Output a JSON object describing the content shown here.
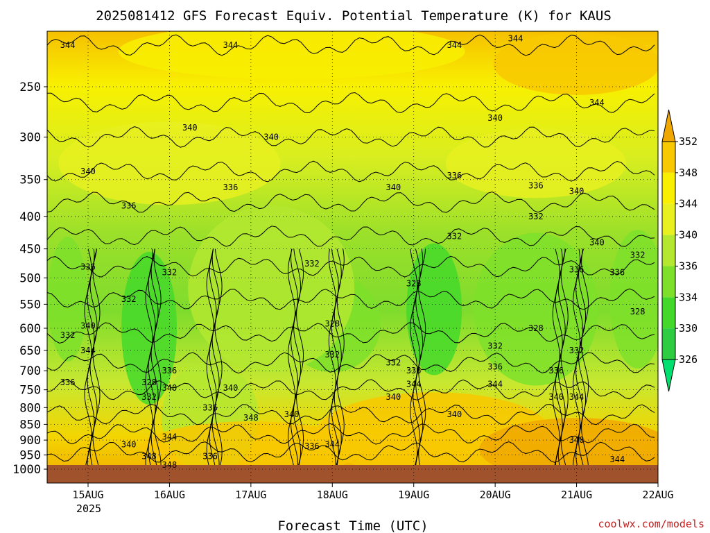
{
  "chart_data": {
    "type": "heatmap",
    "title": "2025081412 GFS Forecast Equiv. Potential Temperature (K) for KAUS",
    "xlabel": "Forecast Time (UTC)",
    "ylabel": "",
    "credit": "coolwx.com/models",
    "x_ticks": [
      "15AUG",
      "16AUG",
      "17AUG",
      "18AUG",
      "19AUG",
      "20AUG",
      "21AUG",
      "22AUG"
    ],
    "x_year_label": "2025",
    "y_axis": {
      "scale": "log-pressure",
      "range_hPa": [
        1000,
        200
      ],
      "inverted": true
    },
    "y_ticks": [
      "250",
      "300",
      "350",
      "400",
      "450",
      "500",
      "550",
      "600",
      "650",
      "700",
      "750",
      "800",
      "850",
      "900",
      "950",
      "1000"
    ],
    "y_tick_values": [
      250,
      300,
      350,
      400,
      450,
      500,
      550,
      600,
      650,
      700,
      750,
      800,
      850,
      900,
      950,
      1000
    ],
    "grid": true,
    "colorbar": {
      "levels": [
        326,
        330,
        334,
        336,
        340,
        344,
        348,
        352
      ],
      "labels": [
        "326",
        "330",
        "334",
        "336",
        "340",
        "344",
        "348",
        "352"
      ],
      "colors": [
        "#2ecc40",
        "#44d92a",
        "#7ee02a",
        "#b4e830",
        "#e8f020",
        "#f8f000",
        "#f8c800",
        "#f0a800"
      ],
      "placement": "right"
    },
    "contour_interval_K": 4,
    "contour_labels": [
      {
        "text": "344",
        "time": "14AUG 18Z",
        "p": 215
      },
      {
        "text": "344",
        "time": "16AUG 18Z",
        "p": 215
      },
      {
        "text": "344",
        "time": "19AUG 12Z",
        "p": 215
      },
      {
        "text": "344",
        "time": "20AUG 06Z",
        "p": 210
      },
      {
        "text": "344",
        "time": "21AUG 06Z",
        "p": 265
      },
      {
        "text": "340",
        "time": "20AUG 00Z",
        "p": 280
      },
      {
        "text": "340",
        "time": "16AUG 06Z",
        "p": 290
      },
      {
        "text": "340",
        "time": "17AUG 06Z",
        "p": 300
      },
      {
        "text": "340",
        "time": "15AUG 00Z",
        "p": 340
      },
      {
        "text": "340",
        "time": "18AUG 18Z",
        "p": 360
      },
      {
        "text": "336",
        "time": "16AUG 18Z",
        "p": 360
      },
      {
        "text": "336",
        "time": "15AUG 12Z",
        "p": 385
      },
      {
        "text": "336",
        "time": "19AUG 12Z",
        "p": 345
      },
      {
        "text": "336",
        "time": "20AUG 12Z",
        "p": 358
      },
      {
        "text": "340",
        "time": "21AUG 00Z",
        "p": 365
      },
      {
        "text": "332",
        "time": "20AUG 12Z",
        "p": 400
      },
      {
        "text": "332",
        "time": "19AUG 12Z",
        "p": 430
      },
      {
        "text": "340",
        "time": "21AUG 06Z",
        "p": 440
      },
      {
        "text": "332",
        "time": "21AUG 18Z",
        "p": 460
      },
      {
        "text": "336",
        "time": "15AUG 00Z",
        "p": 480
      },
      {
        "text": "332",
        "time": "16AUG 00Z",
        "p": 490
      },
      {
        "text": "332",
        "time": "17AUG 18Z",
        "p": 475
      },
      {
        "text": "336",
        "time": "21AUG 00Z",
        "p": 485
      },
      {
        "text": "336",
        "time": "21AUG 12Z",
        "p": 490
      },
      {
        "text": "328",
        "time": "19AUG 00Z",
        "p": 510
      },
      {
        "text": "332",
        "time": "15AUG 12Z",
        "p": 540
      },
      {
        "text": "328",
        "time": "21AUG 18Z",
        "p": 565
      },
      {
        "text": "340",
        "time": "15AUG 00Z",
        "p": 595
      },
      {
        "text": "328",
        "time": "18AUG 00Z",
        "p": 590
      },
      {
        "text": "328",
        "time": "20AUG 12Z",
        "p": 600
      },
      {
        "text": "332",
        "time": "14AUG 18Z",
        "p": 615
      },
      {
        "text": "344",
        "time": "15AUG 00Z",
        "p": 650
      },
      {
        "text": "332",
        "time": "20AUG 00Z",
        "p": 640
      },
      {
        "text": "332",
        "time": "21AUG 00Z",
        "p": 650
      },
      {
        "text": "332",
        "time": "18AUG 00Z",
        "p": 660
      },
      {
        "text": "332",
        "time": "18AUG 18Z",
        "p": 680
      },
      {
        "text": "336",
        "time": "16AUG 00Z",
        "p": 700
      },
      {
        "text": "336",
        "time": "19AUG 00Z",
        "p": 700
      },
      {
        "text": "336",
        "time": "20AUG 00Z",
        "p": 690
      },
      {
        "text": "336",
        "time": "20AUG 18Z",
        "p": 700
      },
      {
        "text": "336",
        "time": "14AUG 18Z",
        "p": 730
      },
      {
        "text": "328",
        "time": "15AUG 18Z",
        "p": 730
      },
      {
        "text": "340",
        "time": "16AUG 00Z",
        "p": 745
      },
      {
        "text": "340",
        "time": "16AUG 18Z",
        "p": 745
      },
      {
        "text": "344",
        "time": "19AUG 00Z",
        "p": 735
      },
      {
        "text": "344",
        "time": "20AUG 00Z",
        "p": 735
      },
      {
        "text": "332",
        "time": "15AUG 18Z",
        "p": 770
      },
      {
        "text": "340",
        "time": "18AUG 18Z",
        "p": 770
      },
      {
        "text": "340",
        "time": "20AUG 18Z",
        "p": 770
      },
      {
        "text": "344",
        "time": "21AUG 00Z",
        "p": 770
      },
      {
        "text": "336",
        "time": "16AUG 12Z",
        "p": 800
      },
      {
        "text": "340",
        "time": "17AUG 12Z",
        "p": 820
      },
      {
        "text": "348",
        "time": "17AUG 00Z",
        "p": 830
      },
      {
        "text": "340",
        "time": "19AUG 12Z",
        "p": 820
      },
      {
        "text": "344",
        "time": "16AUG 00Z",
        "p": 890
      },
      {
        "text": "340",
        "time": "15AUG 12Z",
        "p": 915
      },
      {
        "text": "336",
        "time": "17AUG 18Z",
        "p": 920
      },
      {
        "text": "344",
        "time": "18AUG 00Z",
        "p": 915
      },
      {
        "text": "340",
        "time": "21AUG 00Z",
        "p": 900
      },
      {
        "text": "336",
        "time": "16AUG 12Z",
        "p": 955
      },
      {
        "text": "348",
        "time": "15AUG 18Z",
        "p": 955
      },
      {
        "text": "348",
        "time": "16AUG 00Z",
        "p": 985
      },
      {
        "text": "344",
        "time": "21AUG 12Z",
        "p": 965
      }
    ],
    "surface_ground_color": "#a0522d"
  }
}
